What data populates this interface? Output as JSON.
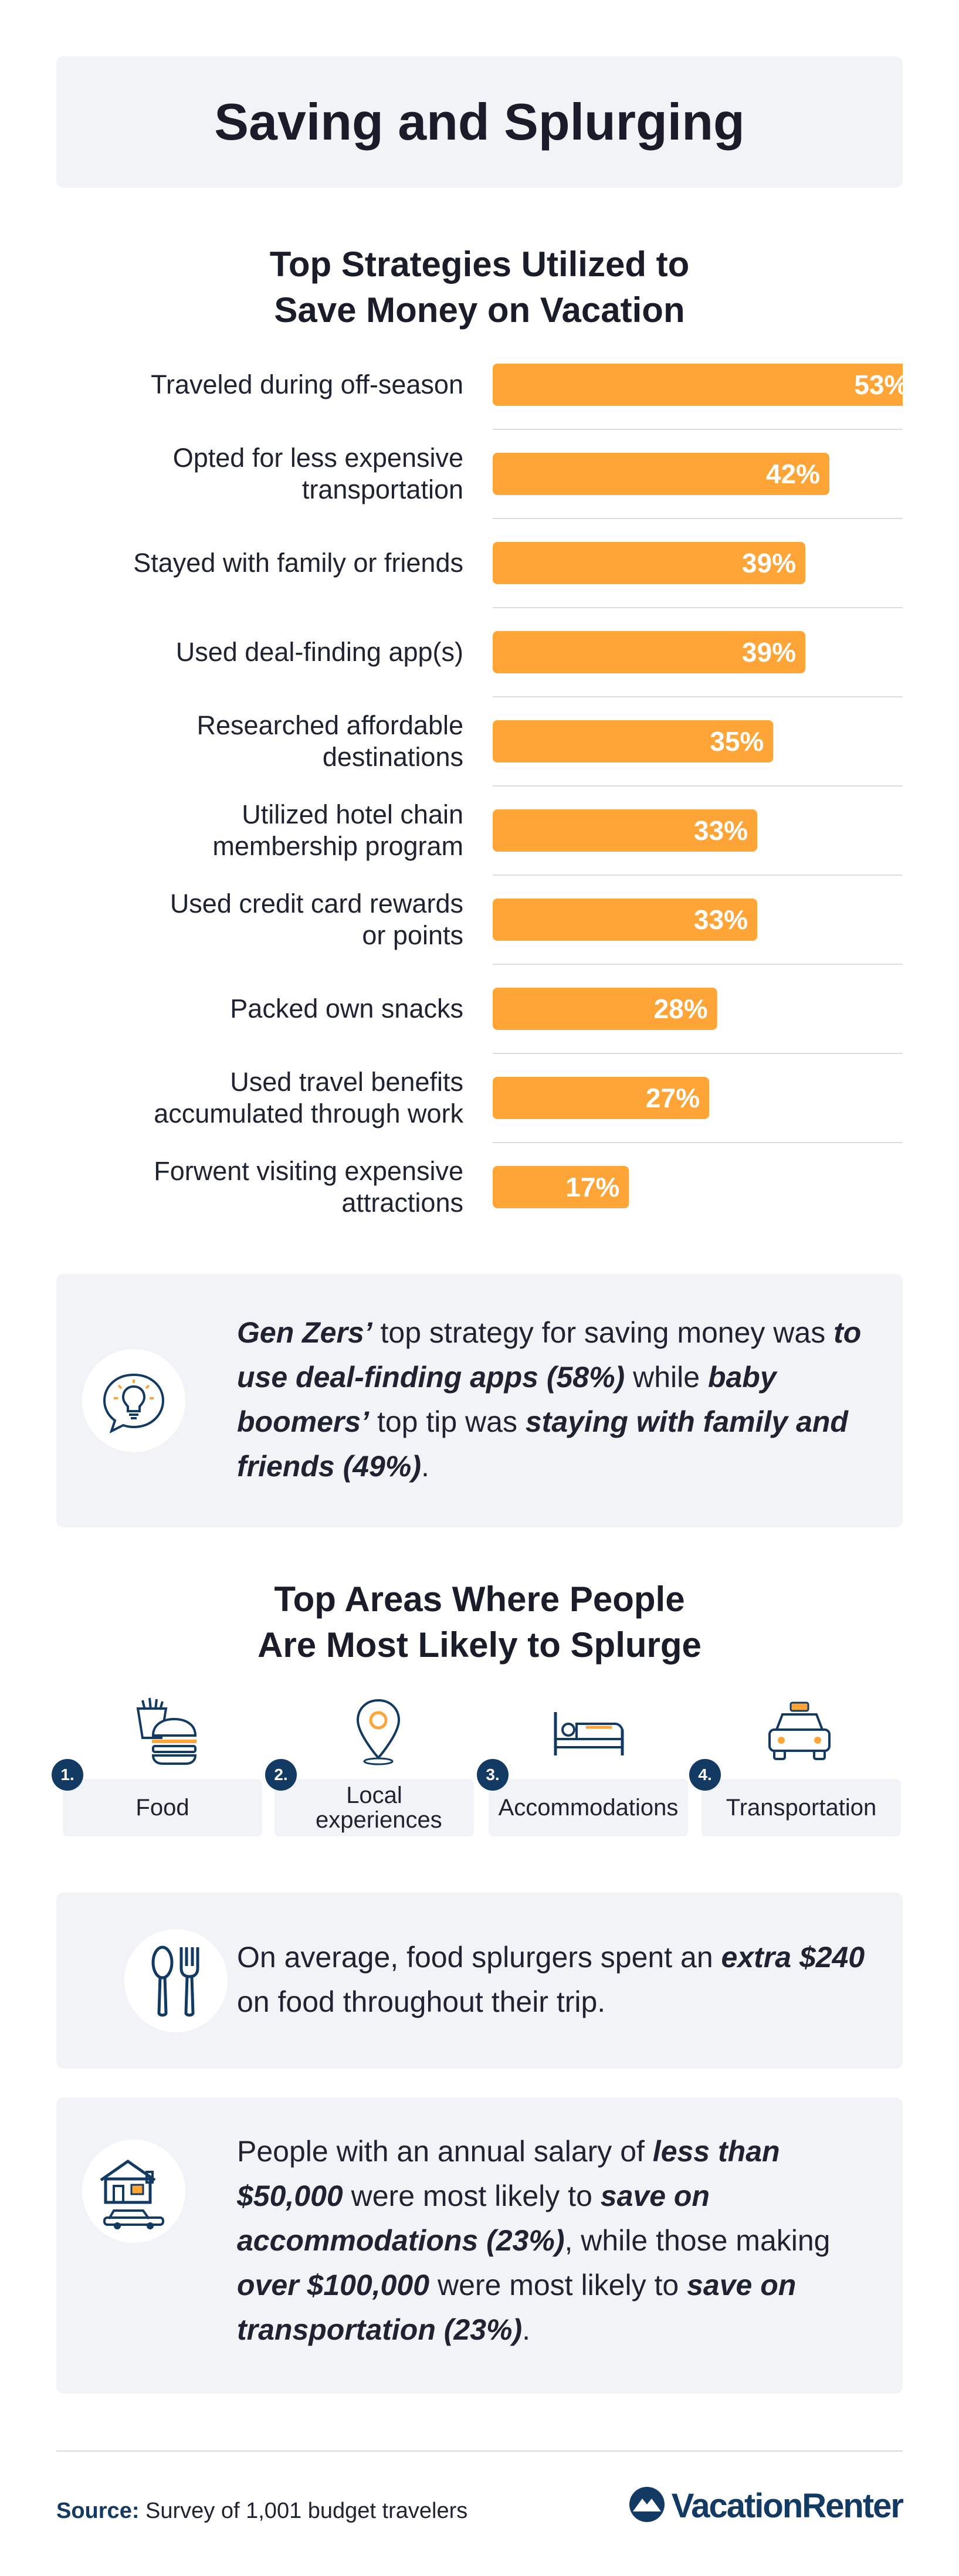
{
  "title": "Saving and Splurging",
  "strategies_heading": [
    "Top Strategies Utilized to",
    "Save Money on Vacation"
  ],
  "chart_data": {
    "type": "bar",
    "orientation": "horizontal",
    "categories": [
      [
        "Traveled during off-season"
      ],
      [
        "Opted for less expensive",
        "transportation"
      ],
      [
        "Stayed with family or friends"
      ],
      [
        "Used deal-finding app(s)"
      ],
      [
        "Researched affordable",
        "destinations"
      ],
      [
        "Utilized hotel chain",
        "membership program"
      ],
      [
        "Used credit card rewards",
        "or points"
      ],
      [
        "Packed own snacks"
      ],
      [
        "Used travel benefits",
        "accumulated through work"
      ],
      [
        "Forwent visiting expensive",
        "attractions"
      ]
    ],
    "values": [
      53,
      42,
      39,
      39,
      35,
      33,
      33,
      28,
      27,
      17
    ],
    "value_labels": [
      "53%",
      "42%",
      "39%",
      "39%",
      "35%",
      "33%",
      "33%",
      "28%",
      "27%",
      "17%"
    ],
    "unit": "%",
    "bar_color": "#ffa538",
    "xlim": [
      0,
      60
    ],
    "grid": false
  },
  "gen_z_box": {
    "icon": "lightbulb-speech-icon",
    "text": [
      {
        "t": "Gen Zers’",
        "b": true
      },
      {
        "t": " top strategy for saving money was ",
        "b": false
      },
      {
        "t": "to use deal-finding apps (58%)",
        "b": true
      },
      {
        "t": " while ",
        "b": false
      },
      {
        "t": "baby boomers’",
        "b": true
      },
      {
        "t": " top tip was ",
        "b": false
      },
      {
        "t": "staying with family and friends (49%)",
        "b": true
      },
      {
        "t": ".",
        "b": false
      }
    ]
  },
  "splurge_heading": [
    "Top Areas Where People",
    "Are Most Likely to Splurge"
  ],
  "splurge_items": [
    {
      "rank": "1.",
      "label": "Food",
      "icon": "burger-fries-icon"
    },
    {
      "rank": "2.",
      "label": "Local experiences",
      "icon": "map-pin-icon"
    },
    {
      "rank": "3.",
      "label": "Accommodations",
      "icon": "bed-icon"
    },
    {
      "rank": "4.",
      "label": "Transportation",
      "icon": "taxi-icon"
    }
  ],
  "food_box": {
    "icon": "spoon-fork-icon",
    "text": [
      {
        "t": "On average, food splurgers spent an ",
        "b": false
      },
      {
        "t": "extra $240",
        "b": true
      },
      {
        "t": " on food throughout their trip.",
        "b": false
      }
    ]
  },
  "salary_box": {
    "icon": "house-car-icon",
    "text": [
      {
        "t": "People with an annual salary of ",
        "b": false
      },
      {
        "t": "less than $50,000",
        "b": true
      },
      {
        "t": " were most likely to ",
        "b": false
      },
      {
        "t": "save on accommodations (23%)",
        "b": true
      },
      {
        "t": ", while those making ",
        "b": false
      },
      {
        "t": "over $100,000",
        "b": true
      },
      {
        "t": " were most likely to ",
        "b": false
      },
      {
        "t": "save on transportation (23%)",
        "b": true
      },
      {
        "t": ".",
        "b": false
      }
    ]
  },
  "source": {
    "label": "Source:",
    "text": " Survey of 1,001 budget travelers"
  },
  "logo": {
    "text": "VacationRenter",
    "icon": "mountain-logo-icon"
  },
  "colors": {
    "accent": "#ffa538",
    "navy": "#123a63",
    "panel": "#f1f3f6"
  }
}
